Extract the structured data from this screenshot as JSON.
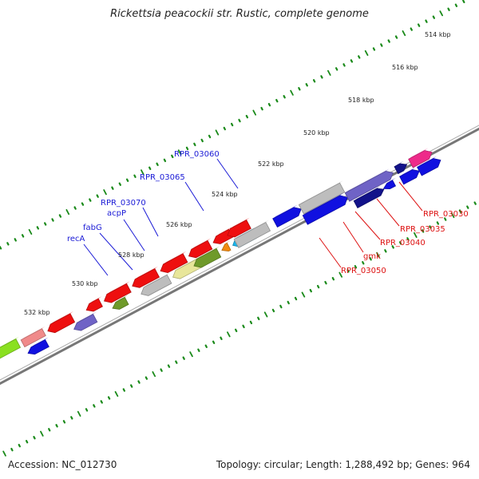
{
  "title": "Rickettsia peacockii str. Rustic, complete genome",
  "accession_text": "Accession: NC_012730",
  "summary_text": "Topology: circular; Length: 1,288,492 bp; Genes: 964",
  "colors": {
    "backbone": "#777777",
    "tick": "#1a8a1a",
    "forward_label": "#1a1ad6",
    "reverse_label": "#dd1111",
    "cds_blue": "#1010e0",
    "cds_red": "#ee0f0f",
    "cds_grey": "#bdbdbd",
    "cds_purple": "#6f63c6",
    "cds_navy": "#12128a",
    "cds_pink": "#ee2a8a",
    "cds_olive": "#6f9a2a",
    "cds_yellow": "#e8e69a",
    "cds_cyan": "#18b6ee",
    "cds_orange": "#f08a10",
    "cds_salmon": "#f08a8a",
    "cds_lime": "#8ae020"
  },
  "scale": {
    "unit": "kbp",
    "labels": [
      "514 kbp",
      "516 kbp",
      "518 kbp",
      "520 kbp",
      "522 kbp",
      "524 kbp",
      "526 kbp",
      "528 kbp",
      "530 kbp",
      "532 kbp"
    ]
  },
  "gene_labels_forward": [
    "RPR_03060",
    "RPR_03065",
    "RPR_03070",
    "acpP",
    "fabG",
    "recA"
  ],
  "gene_labels_reverse": [
    "RPR_03030",
    "RPR_03035",
    "RPR_03040",
    "gmk",
    "RPR_03050"
  ]
}
